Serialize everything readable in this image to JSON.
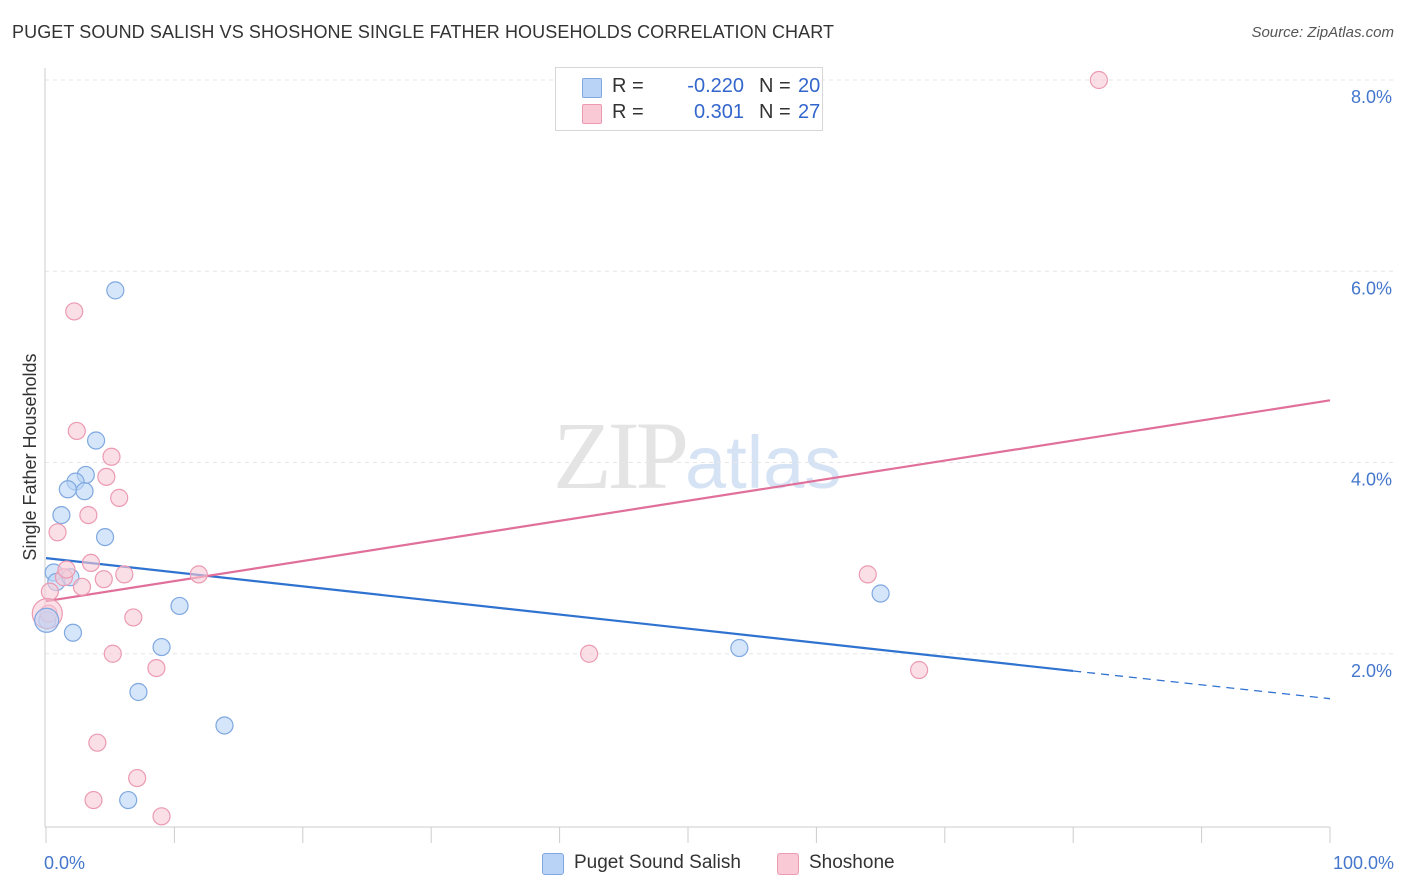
{
  "header": {
    "title": "PUGET SOUND SALISH VS SHOSHONE SINGLE FATHER HOUSEHOLDS CORRELATION CHART",
    "source": "Source: ZipAtlas.com"
  },
  "watermark": {
    "zip": "ZIP",
    "atlas": "atlas"
  },
  "legend_box": {
    "rows": [
      {
        "r_label": "R =",
        "r_value": "-0.220",
        "n_label": "N =",
        "n_value": "20"
      },
      {
        "r_label": "R =",
        "r_value": "0.301",
        "n_label": "N =",
        "n_value": "27"
      }
    ]
  },
  "bottom_legend": {
    "items": [
      {
        "label": "Puget Sound Salish"
      },
      {
        "label": "Shoshone"
      }
    ]
  },
  "colors": {
    "blue_fill": "#b9d3f6",
    "blue_stroke": "#7fa8e0",
    "blue_line": "#2f72d0",
    "pink_fill": "#f9c9d6",
    "pink_stroke": "#eb9ab2",
    "pink_line": "#e0709a",
    "grid": "#e6e6e6",
    "axis": "#cccccc"
  },
  "chart_data": {
    "type": "scatter",
    "title": "PUGET SOUND SALISH VS SHOSHONE SINGLE FATHER HOUSEHOLDS CORRELATION CHART",
    "xlabel": "",
    "ylabel": "Single Father Households",
    "xlim": [
      0,
      100
    ],
    "ylim": [
      0,
      8.2
    ],
    "x_tick_labels": [
      "0.0%",
      "100.0%"
    ],
    "y_ticks": [
      2,
      4,
      6,
      8
    ],
    "y_tick_labels": [
      "2.0%",
      "4.0%",
      "6.0%",
      "8.0%"
    ],
    "series": [
      {
        "name": "Puget Sound Salish",
        "r": -0.22,
        "n": 20,
        "points": [
          [
            5.4,
            5.8
          ],
          [
            3.9,
            4.23
          ],
          [
            3.1,
            3.87
          ],
          [
            2.3,
            3.8
          ],
          [
            3.0,
            3.7
          ],
          [
            1.7,
            3.72
          ],
          [
            1.2,
            3.45
          ],
          [
            4.6,
            3.22
          ],
          [
            0.6,
            2.85
          ],
          [
            0.8,
            2.75
          ],
          [
            1.9,
            2.8
          ],
          [
            10.4,
            2.5
          ],
          [
            0.1,
            2.35
          ],
          [
            2.1,
            2.22
          ],
          [
            9.0,
            2.07
          ],
          [
            54.0,
            2.06
          ],
          [
            65.0,
            2.63
          ],
          [
            7.2,
            1.6
          ],
          [
            13.9,
            1.25
          ],
          [
            6.4,
            0.47
          ]
        ],
        "trend": {
          "x": [
            0,
            80,
            100
          ],
          "y": [
            3.0,
            1.82,
            1.53
          ],
          "solid_until": 80
        }
      },
      {
        "name": "Shoshone",
        "r": 0.301,
        "n": 27,
        "points": [
          [
            82.0,
            8.0
          ],
          [
            2.2,
            5.58
          ],
          [
            2.4,
            4.33
          ],
          [
            5.1,
            4.06
          ],
          [
            4.7,
            3.85
          ],
          [
            5.7,
            3.63
          ],
          [
            3.3,
            3.45
          ],
          [
            0.9,
            3.27
          ],
          [
            3.5,
            2.95
          ],
          [
            0.3,
            2.65
          ],
          [
            1.4,
            2.8
          ],
          [
            6.1,
            2.83
          ],
          [
            4.5,
            2.78
          ],
          [
            2.8,
            2.7
          ],
          [
            11.9,
            2.83
          ],
          [
            0.2,
            2.42
          ],
          [
            6.8,
            2.38
          ],
          [
            5.2,
            2.0
          ],
          [
            8.6,
            1.85
          ],
          [
            42.3,
            2.0
          ],
          [
            64.0,
            2.83
          ],
          [
            68.0,
            1.83
          ],
          [
            4.0,
            1.07
          ],
          [
            7.1,
            0.7
          ],
          [
            3.7,
            0.47
          ],
          [
            9.0,
            0.3
          ],
          [
            1.6,
            2.88
          ]
        ],
        "trend": {
          "x": [
            0,
            100
          ],
          "y": [
            2.55,
            4.65
          ]
        }
      }
    ]
  }
}
